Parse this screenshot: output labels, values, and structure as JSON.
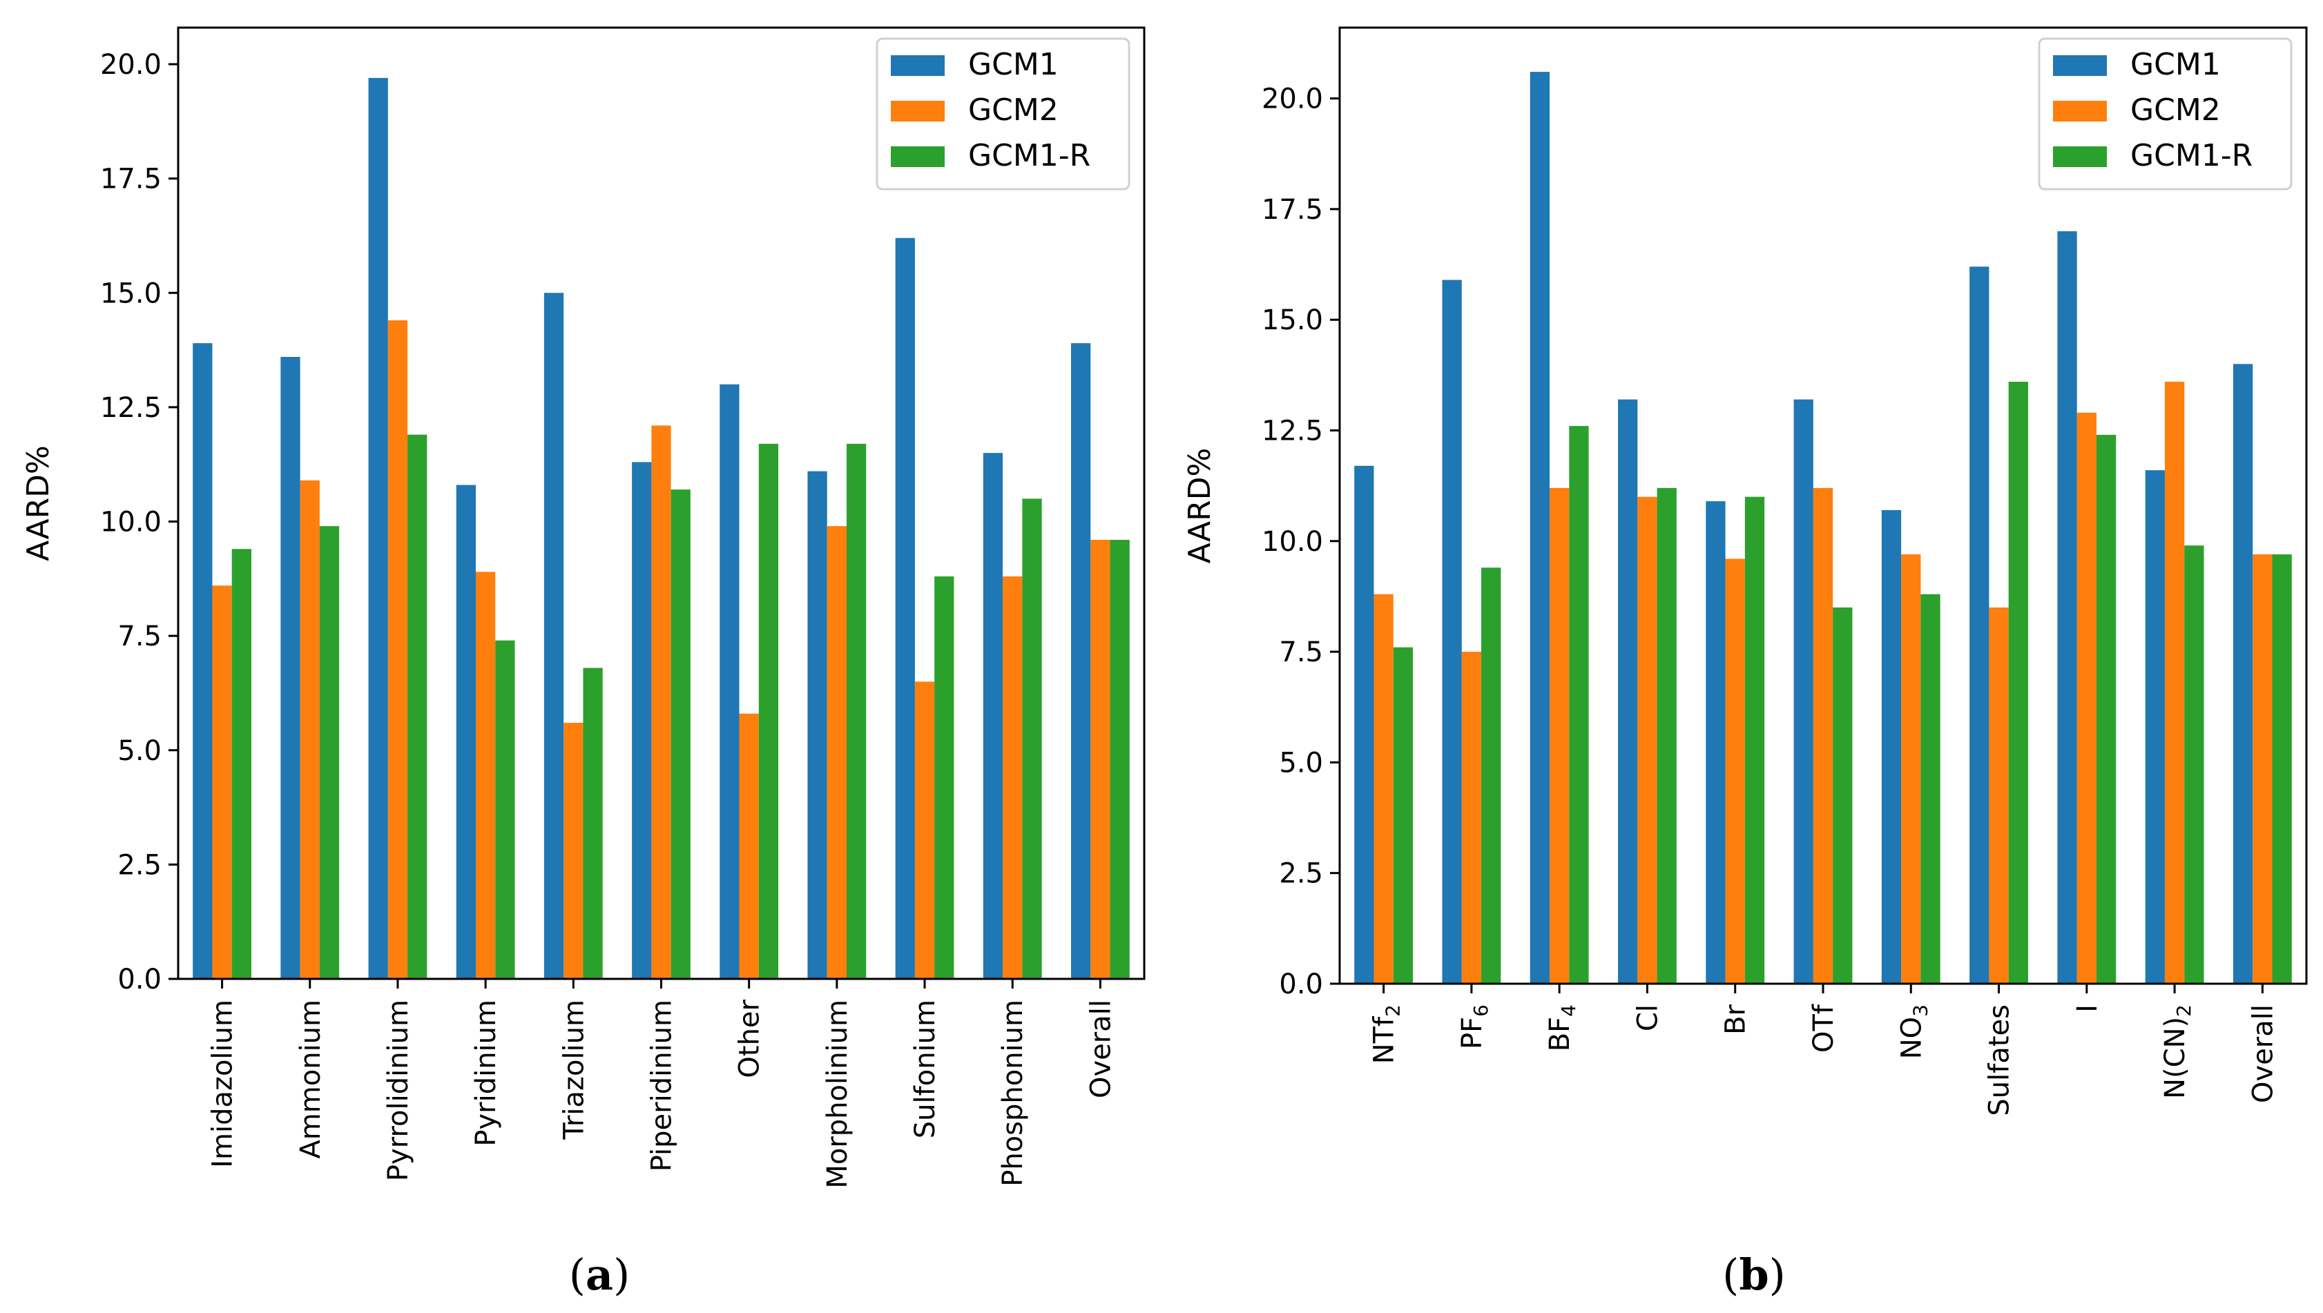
{
  "figure": {
    "panels": [
      {
        "paren_open": "(",
        "letter": "a",
        "paren_close": ")"
      },
      {
        "paren_open": "(",
        "letter": "b",
        "paren_close": ")"
      }
    ]
  },
  "colors": {
    "GCM1": "#1f77b4",
    "GCM2": "#ff7f0e",
    "GCM1-R": "#2ca02c"
  },
  "chart_data": [
    {
      "type": "bar",
      "ylabel": "AARD%",
      "ylim": [
        0,
        20.8
      ],
      "yticks": [
        0.0,
        2.5,
        5.0,
        7.5,
        10.0,
        12.5,
        15.0,
        17.5,
        20.0
      ],
      "ytick_labels": [
        "0.0",
        "2.5",
        "5.0",
        "7.5",
        "10.0",
        "12.5",
        "15.0",
        "17.5",
        "20.0"
      ],
      "legend_position": "top-right",
      "categories": [
        {
          "label": "Imidazolium"
        },
        {
          "label": "Ammonium"
        },
        {
          "label": "Pyrrolidinium"
        },
        {
          "label": "Pyridinium"
        },
        {
          "label": "Triazolium"
        },
        {
          "label": "Piperidinium"
        },
        {
          "label": "Other"
        },
        {
          "label": "Morpholinium"
        },
        {
          "label": "Sulfonium"
        },
        {
          "label": "Phosphonium"
        },
        {
          "label": "Overall"
        }
      ],
      "series": [
        {
          "name": "GCM1",
          "values": [
            13.9,
            13.6,
            19.7,
            10.8,
            15.0,
            11.3,
            13.0,
            11.1,
            16.2,
            11.5,
            13.9
          ]
        },
        {
          "name": "GCM2",
          "values": [
            8.6,
            10.9,
            14.4,
            8.9,
            5.6,
            12.1,
            5.8,
            9.9,
            6.5,
            8.8,
            9.6
          ]
        },
        {
          "name": "GCM1-R",
          "values": [
            9.4,
            9.9,
            11.9,
            7.4,
            6.8,
            10.7,
            11.7,
            11.7,
            8.8,
            10.5,
            9.6
          ]
        }
      ]
    },
    {
      "type": "bar",
      "ylabel": "AARD%",
      "ylim": [
        0,
        21.6
      ],
      "yticks": [
        0.0,
        2.5,
        5.0,
        7.5,
        10.0,
        12.5,
        15.0,
        17.5,
        20.0
      ],
      "ytick_labels": [
        "0.0",
        "2.5",
        "5.0",
        "7.5",
        "10.0",
        "12.5",
        "15.0",
        "17.5",
        "20.0"
      ],
      "legend_position": "top-right",
      "categories": [
        {
          "label": "NTf",
          "sub": "2"
        },
        {
          "label": "PF",
          "sub": "6"
        },
        {
          "label": "BF",
          "sub": "4"
        },
        {
          "label": "Cl"
        },
        {
          "label": "Br"
        },
        {
          "label": "OTf"
        },
        {
          "label": "NO",
          "sub": "3"
        },
        {
          "label": "Sulfates"
        },
        {
          "label": "I"
        },
        {
          "label": "N(CN)",
          "sub": "2"
        },
        {
          "label": "Overall"
        }
      ],
      "series": [
        {
          "name": "GCM1",
          "values": [
            11.7,
            15.9,
            20.6,
            13.2,
            10.9,
            13.2,
            10.7,
            16.2,
            17.0,
            11.6,
            14.0
          ]
        },
        {
          "name": "GCM2",
          "values": [
            8.8,
            7.5,
            11.2,
            11.0,
            9.6,
            11.2,
            9.7,
            8.5,
            12.9,
            13.6,
            9.7
          ]
        },
        {
          "name": "GCM1-R",
          "values": [
            7.6,
            9.4,
            12.6,
            11.2,
            11.0,
            8.5,
            8.8,
            13.6,
            12.4,
            9.9,
            9.7
          ]
        }
      ]
    }
  ]
}
